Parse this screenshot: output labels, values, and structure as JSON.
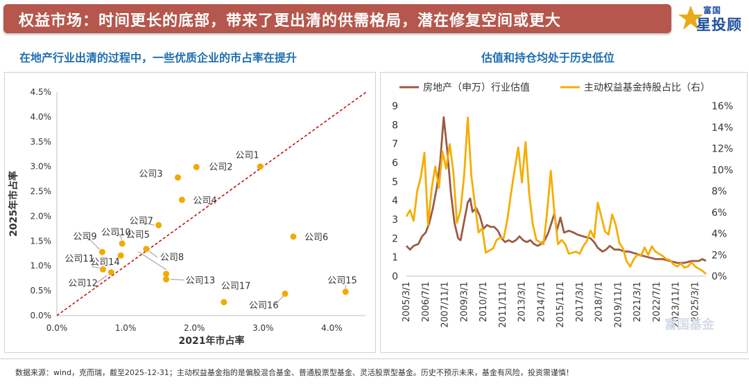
{
  "header": {
    "title": "权益市场：时间更长的底部，带来了更出清的供需格局，潜在修复空间或更大",
    "logo_small": "富国",
    "logo_big": "星投顾",
    "watermark": "富国基金"
  },
  "subtitles": {
    "left": "在地产行业出清的过程中，一些优质企业的市占率在提升",
    "right": "估值和持仓均处于历史低位"
  },
  "footnote": "数据来源：wind，克而瑞，截至2025-12-31；主动权益基金指的是偏股混合基金、普通股票型基金、灵活股票型基金。历史不预示未来，基金有风险，投资需谨慎！",
  "colors": {
    "title_bg": "#b5574c",
    "subtitle": "#1f6fb0",
    "dot": "#f2a900",
    "diagonal": "#c00000",
    "line_brown": "#9b5a44",
    "line_orange": "#f5ad00"
  },
  "chart_data": [
    {
      "type": "scatter",
      "title": "",
      "xlabel": "2021年市占率",
      "ylabel": "2025年市占率",
      "xlim": [
        0,
        0.045
      ],
      "ylim": [
        0,
        0.045
      ],
      "xticks": [
        "0.0%",
        "1.0%",
        "2.0%",
        "3.0%",
        "4.0%"
      ],
      "yticks": [
        "0.0%",
        "0.5%",
        "1.0%",
        "1.5%",
        "2.0%",
        "2.5%",
        "3.0%",
        "3.5%",
        "4.0%",
        "4.5%"
      ],
      "reference_line": "y = x",
      "points": [
        {
          "label": "公司1",
          "x": 0.0296,
          "y": 0.03
        },
        {
          "label": "公司2",
          "x": 0.0203,
          "y": 0.0299
        },
        {
          "label": "公司3",
          "x": 0.0176,
          "y": 0.0278
        },
        {
          "label": "公司4",
          "x": 0.0182,
          "y": 0.0233
        },
        {
          "label": "公司5",
          "x": 0.0159,
          "y": 0.0084
        },
        {
          "label": "公司6",
          "x": 0.0344,
          "y": 0.0159
        },
        {
          "label": "公司7",
          "x": 0.0148,
          "y": 0.0182
        },
        {
          "label": "公司8",
          "x": 0.013,
          "y": 0.0134
        },
        {
          "label": "公司9",
          "x": 0.0066,
          "y": 0.0128
        },
        {
          "label": "公司10",
          "x": 0.0095,
          "y": 0.0145
        },
        {
          "label": "公司11",
          "x": 0.0067,
          "y": 0.0093
        },
        {
          "label": "公司12",
          "x": 0.0079,
          "y": 0.0087
        },
        {
          "label": "公司13",
          "x": 0.0159,
          "y": 0.0073
        },
        {
          "label": "公司14",
          "x": 0.0093,
          "y": 0.0121
        },
        {
          "label": "公司15",
          "x": 0.042,
          "y": 0.0048
        },
        {
          "label": "公司16",
          "x": 0.0332,
          "y": 0.0044
        },
        {
          "label": "公司17",
          "x": 0.0243,
          "y": 0.0027
        }
      ]
    },
    {
      "type": "line",
      "title": "",
      "x_range": [
        "2005-03",
        "2025-12"
      ],
      "xticks": [
        "2005/3/1",
        "2006/7/1",
        "2007/11/1",
        "2009/3/1",
        "2010/7/1",
        "2011/11/1",
        "2013/3/1",
        "2014/7/1",
        "2015/11/1",
        "2017/3/1",
        "2018/7/1",
        "2019/11/1",
        "2021/3/1",
        "2022/7/1",
        "2023/11/1",
        "2025/3/1"
      ],
      "y_left": {
        "range": [
          0,
          9
        ],
        "ticks": [
          "0",
          "1",
          "2",
          "3",
          "4",
          "5",
          "6",
          "7",
          "8",
          "9"
        ]
      },
      "y_right": {
        "range": [
          0,
          0.16
        ],
        "ticks": [
          "0%",
          "2%",
          "4%",
          "6%",
          "8%",
          "10%",
          "12%",
          "14%",
          "16%"
        ],
        "label": "（右）"
      },
      "legend": "top",
      "series": [
        {
          "name": "房地产（申万）行业估值",
          "axis": "left",
          "points": [
            [
              "2005-03",
              1.6
            ],
            [
              "2005-06",
              1.4
            ],
            [
              "2005-09",
              1.6
            ],
            [
              "2006-01",
              1.7
            ],
            [
              "2006-04",
              2.1
            ],
            [
              "2006-07",
              2.3
            ],
            [
              "2006-10",
              2.8
            ],
            [
              "2007-01",
              3.6
            ],
            [
              "2007-04",
              4.6
            ],
            [
              "2007-07",
              6.0
            ],
            [
              "2007-10",
              8.4
            ],
            [
              "2008-01",
              6.6
            ],
            [
              "2008-04",
              4.4
            ],
            [
              "2008-07",
              2.8
            ],
            [
              "2008-10",
              2.0
            ],
            [
              "2008-12",
              1.9
            ],
            [
              "2009-03",
              2.9
            ],
            [
              "2009-06",
              3.9
            ],
            [
              "2009-08",
              4.1
            ],
            [
              "2009-10",
              3.4
            ],
            [
              "2010-01",
              3.6
            ],
            [
              "2010-04",
              3.2
            ],
            [
              "2010-07",
              2.5
            ],
            [
              "2010-10",
              2.7
            ],
            [
              "2011-01",
              2.6
            ],
            [
              "2011-04",
              2.6
            ],
            [
              "2011-07",
              2.4
            ],
            [
              "2011-10",
              2.0
            ],
            [
              "2012-01",
              1.8
            ],
            [
              "2012-04",
              1.9
            ],
            [
              "2012-07",
              1.8
            ],
            [
              "2012-10",
              1.9
            ],
            [
              "2013-01",
              2.1
            ],
            [
              "2013-04",
              1.9
            ],
            [
              "2013-07",
              1.8
            ],
            [
              "2013-10",
              1.9
            ],
            [
              "2014-01",
              1.7
            ],
            [
              "2014-04",
              1.6
            ],
            [
              "2014-07",
              1.7
            ],
            [
              "2014-10",
              1.9
            ],
            [
              "2015-01",
              2.3
            ],
            [
              "2015-04",
              2.9
            ],
            [
              "2015-06",
              3.3
            ],
            [
              "2015-08",
              2.4
            ],
            [
              "2015-11",
              3.1
            ],
            [
              "2016-02",
              2.3
            ],
            [
              "2016-06",
              2.4
            ],
            [
              "2016-10",
              2.3
            ],
            [
              "2017-01",
              2.2
            ],
            [
              "2017-06",
              2.1
            ],
            [
              "2017-12",
              2.0
            ],
            [
              "2018-03",
              1.8
            ],
            [
              "2018-06",
              1.5
            ],
            [
              "2018-10",
              1.3
            ],
            [
              "2019-01",
              1.4
            ],
            [
              "2019-04",
              1.6
            ],
            [
              "2019-08",
              1.4
            ],
            [
              "2019-12",
              1.4
            ],
            [
              "2020-04",
              1.3
            ],
            [
              "2020-08",
              1.3
            ],
            [
              "2021-01",
              1.2
            ],
            [
              "2021-06",
              1.1
            ],
            [
              "2021-12",
              1.0
            ],
            [
              "2022-06",
              0.9
            ],
            [
              "2022-12",
              0.9
            ],
            [
              "2023-06",
              0.8
            ],
            [
              "2023-12",
              0.7
            ],
            [
              "2024-06",
              0.7
            ],
            [
              "2024-12",
              0.8
            ],
            [
              "2025-06",
              0.8
            ],
            [
              "2025-09",
              0.9
            ],
            [
              "2025-12",
              0.8
            ]
          ]
        },
        {
          "name": "主动权益基金持股占比",
          "axis": "right",
          "points": [
            [
              "2005-03",
              0.056
            ],
            [
              "2005-06",
              0.062
            ],
            [
              "2005-09",
              0.052
            ],
            [
              "2005-12",
              0.08
            ],
            [
              "2006-03",
              0.093
            ],
            [
              "2006-06",
              0.116
            ],
            [
              "2006-09",
              0.048
            ],
            [
              "2006-12",
              0.082
            ],
            [
              "2007-03",
              0.103
            ],
            [
              "2007-06",
              0.083
            ],
            [
              "2007-09",
              0.117
            ],
            [
              "2007-12",
              0.101
            ],
            [
              "2008-03",
              0.124
            ],
            [
              "2008-06",
              0.098
            ],
            [
              "2008-09",
              0.05
            ],
            [
              "2008-12",
              0.062
            ],
            [
              "2009-03",
              0.095
            ],
            [
              "2009-06",
              0.149
            ],
            [
              "2009-09",
              0.094
            ],
            [
              "2009-12",
              0.067
            ],
            [
              "2010-03",
              0.041
            ],
            [
              "2010-06",
              0.045
            ],
            [
              "2010-09",
              0.022
            ],
            [
              "2010-12",
              0.024
            ],
            [
              "2011-03",
              0.026
            ],
            [
              "2011-06",
              0.034
            ],
            [
              "2011-09",
              0.036
            ],
            [
              "2011-12",
              0.036
            ],
            [
              "2012-03",
              0.054
            ],
            [
              "2012-06",
              0.078
            ],
            [
              "2012-09",
              0.1
            ],
            [
              "2012-12",
              0.121
            ],
            [
              "2013-03",
              0.088
            ],
            [
              "2013-06",
              0.126
            ],
            [
              "2013-09",
              0.078
            ],
            [
              "2013-12",
              0.049
            ],
            [
              "2014-03",
              0.034
            ],
            [
              "2014-06",
              0.032
            ],
            [
              "2014-09",
              0.03
            ],
            [
              "2014-12",
              0.061
            ],
            [
              "2015-03",
              0.099
            ],
            [
              "2015-06",
              0.06
            ],
            [
              "2015-09",
              0.03
            ],
            [
              "2015-12",
              0.034
            ],
            [
              "2016-03",
              0.03
            ],
            [
              "2016-06",
              0.021
            ],
            [
              "2016-09",
              0.022
            ],
            [
              "2016-12",
              0.023
            ],
            [
              "2017-03",
              0.021
            ],
            [
              "2017-06",
              0.028
            ],
            [
              "2017-09",
              0.033
            ],
            [
              "2017-12",
              0.043
            ],
            [
              "2018-03",
              0.036
            ],
            [
              "2018-06",
              0.069
            ],
            [
              "2018-09",
              0.056
            ],
            [
              "2018-12",
              0.042
            ],
            [
              "2019-03",
              0.039
            ],
            [
              "2019-06",
              0.058
            ],
            [
              "2019-09",
              0.048
            ],
            [
              "2019-12",
              0.031
            ],
            [
              "2020-03",
              0.026
            ],
            [
              "2020-06",
              0.014
            ],
            [
              "2020-09",
              0.009
            ],
            [
              "2020-12",
              0.016
            ],
            [
              "2021-03",
              0.02
            ],
            [
              "2021-06",
              0.019
            ],
            [
              "2021-09",
              0.027
            ],
            [
              "2021-12",
              0.02
            ],
            [
              "2022-03",
              0.028
            ],
            [
              "2022-06",
              0.023
            ],
            [
              "2022-09",
              0.021
            ],
            [
              "2022-12",
              0.019
            ],
            [
              "2023-03",
              0.016
            ],
            [
              "2023-06",
              0.015
            ],
            [
              "2023-09",
              0.011
            ],
            [
              "2023-12",
              0.009
            ],
            [
              "2024-03",
              0.012
            ],
            [
              "2024-06",
              0.008
            ],
            [
              "2024-09",
              0.009
            ],
            [
              "2024-12",
              0.013
            ],
            [
              "2025-03",
              0.009
            ],
            [
              "2025-06",
              0.007
            ],
            [
              "2025-09",
              0.005
            ],
            [
              "2025-12",
              0.002
            ]
          ]
        }
      ]
    }
  ]
}
